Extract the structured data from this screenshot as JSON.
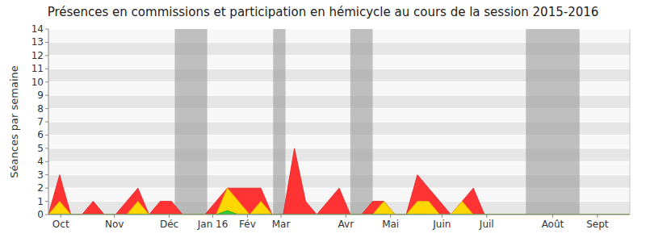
{
  "chart_data": {
    "type": "area",
    "title": "Présences en commissions et participation en hémicycle au cours de la session 2015-2016",
    "y_label": "Séances par semaine",
    "x": [
      0,
      1,
      2,
      3,
      4,
      5,
      6,
      7,
      8,
      9,
      10,
      11,
      12,
      13,
      14,
      15,
      16,
      17,
      18,
      19,
      20,
      21,
      22,
      23,
      24,
      25,
      26,
      27,
      28,
      29,
      30,
      31,
      32,
      33,
      34,
      35,
      36,
      37,
      38,
      39,
      40,
      41,
      42,
      43,
      44,
      45,
      46,
      47,
      48,
      49,
      50,
      51,
      52
    ],
    "series": [
      {
        "color": "#ff3333",
        "values": [
          0,
          3,
          0,
          0,
          1,
          0,
          0,
          1,
          2,
          0,
          1,
          1,
          0,
          0,
          0,
          1,
          2,
          2,
          2,
          2,
          0,
          0,
          5,
          1,
          0,
          1,
          2,
          0,
          0,
          1,
          1,
          0,
          0,
          3,
          2,
          1,
          0,
          1,
          2,
          0,
          0,
          0,
          0,
          0,
          0,
          0,
          0,
          0,
          0,
          0,
          0,
          0,
          0
        ]
      },
      {
        "color": "#ffd700",
        "values": [
          0,
          1,
          0,
          0,
          0,
          0,
          0,
          0,
          1,
          0,
          0,
          0,
          0,
          0,
          0,
          0,
          2,
          1,
          0,
          1,
          0,
          0,
          0,
          0,
          0,
          0,
          0,
          0,
          0,
          0,
          1,
          0,
          0,
          1,
          1,
          0,
          0,
          1,
          0,
          0,
          0,
          0,
          0,
          0,
          0,
          0,
          0,
          0,
          0,
          0,
          0,
          0,
          0
        ]
      },
      {
        "color": "#33cc33",
        "values": [
          0,
          0,
          0,
          0,
          0,
          0,
          0,
          0,
          0,
          0,
          0,
          0,
          0,
          0,
          0,
          0,
          0.3,
          0,
          0,
          0,
          0,
          0,
          0,
          0,
          0,
          0,
          0,
          0,
          0,
          0,
          0,
          0,
          0,
          0,
          0,
          0,
          0,
          0,
          0,
          0,
          0,
          0,
          0,
          0,
          0,
          0,
          0,
          0,
          0,
          0,
          0,
          0,
          0
        ]
      }
    ],
    "bands": [
      [
        11.3,
        14.2
      ],
      [
        20.1,
        21.2
      ],
      [
        27.0,
        29.0
      ],
      [
        42.7,
        47.5
      ]
    ],
    "xlim": [
      0,
      52
    ],
    "xticks": [
      {
        "value": 1.1,
        "label": "Oct"
      },
      {
        "value": 5.9,
        "label": "Nov"
      },
      {
        "value": 10.8,
        "label": "Déc"
      },
      {
        "value": 14.7,
        "label": "Jan 16"
      },
      {
        "value": 17.8,
        "label": "Fév"
      },
      {
        "value": 20.8,
        "label": "Mar"
      },
      {
        "value": 26.6,
        "label": "Avr"
      },
      {
        "value": 30.6,
        "label": "Mai"
      },
      {
        "value": 35.2,
        "label": "Juin"
      },
      {
        "value": 39.2,
        "label": "Juil"
      },
      {
        "value": 45.1,
        "label": "Août"
      },
      {
        "value": 49.1,
        "label": "Sept"
      }
    ],
    "ylim": [
      0,
      14
    ],
    "yticks": [
      0,
      1,
      2,
      3,
      4,
      5,
      6,
      7,
      8,
      9,
      10,
      11,
      12,
      13,
      14
    ],
    "grid": true
  }
}
